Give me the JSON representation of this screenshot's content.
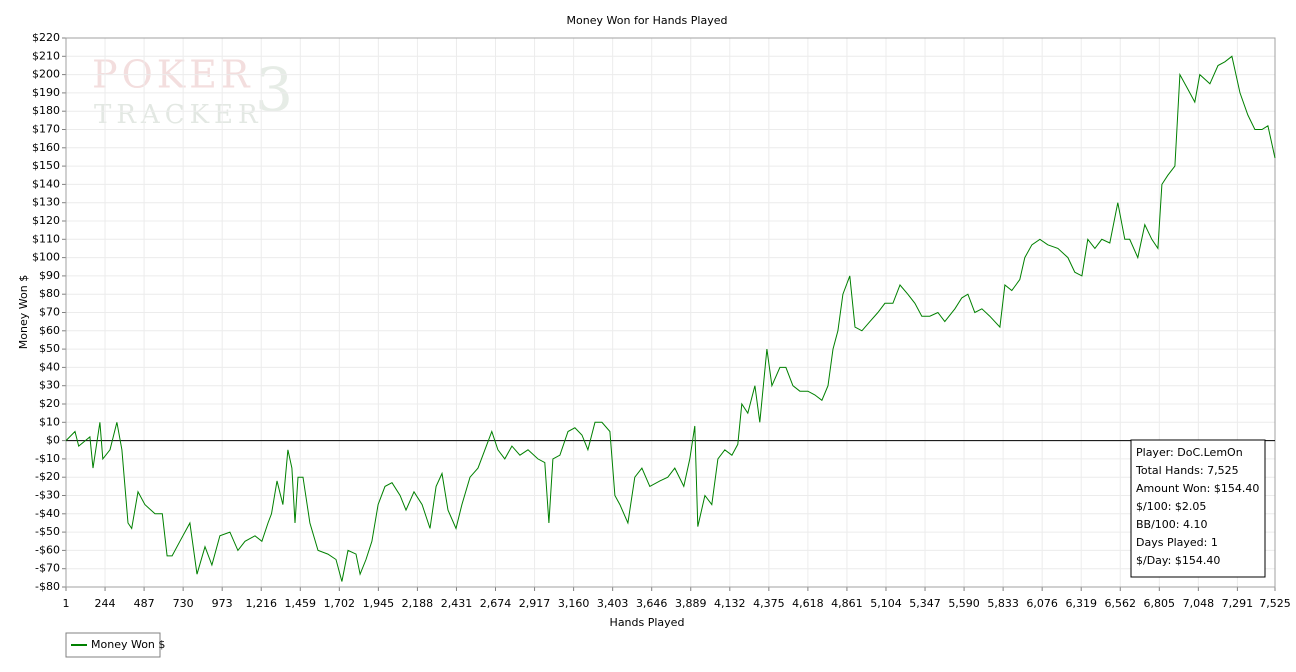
{
  "chart_data": {
    "type": "line",
    "title": "Money Won for Hands Played",
    "xlabel": "Hands Played",
    "ylabel": "Money Won $",
    "watermark": [
      "POKER",
      "TRACKER",
      "3"
    ],
    "x": [
      1,
      57,
      80,
      150,
      169,
      212,
      230,
      275,
      318,
      349,
      387,
      410,
      449,
      492,
      555,
      600,
      630,
      661,
      710,
      772,
      816,
      866,
      909,
      959,
      1021,
      1071,
      1115,
      1177,
      1220,
      1258,
      1280,
      1314,
      1351,
      1382,
      1407,
      1426,
      1445,
      1476,
      1519,
      1569,
      1631,
      1681,
      1718,
      1756,
      1806,
      1831,
      1868,
      1905,
      1943,
      1986,
      2030,
      2080,
      2117,
      2167,
      2217,
      2266,
      2304,
      2341,
      2378,
      2428,
      2465,
      2515,
      2565,
      2608,
      2651,
      2689,
      2732,
      2776,
      2826,
      2876,
      2938,
      2981,
      3006,
      3031,
      3075,
      3125,
      3168,
      3212,
      3249,
      3293,
      3336,
      3386,
      3417,
      3448,
      3498,
      3541,
      3585,
      3634,
      3697,
      3746,
      3790,
      3846,
      3883,
      3914,
      3933,
      3977,
      4020,
      4058,
      4101,
      4145,
      4182,
      4207,
      4244,
      4288,
      4319,
      4363,
      4394,
      4444,
      4481,
      4525,
      4568,
      4618,
      4661,
      4705,
      4743,
      4774,
      4805,
      4836,
      4879,
      4911,
      4954,
      5004,
      5054,
      5097,
      5147,
      5191,
      5240,
      5284,
      5327,
      5377,
      5427,
      5470,
      5533,
      5576,
      5614,
      5657,
      5701,
      5750,
      5813,
      5844,
      5887,
      5937,
      5968,
      6012,
      6062,
      6111,
      6174,
      6236,
      6279,
      6323,
      6360,
      6404,
      6447,
      6497,
      6547,
      6590,
      6621,
      6671,
      6715,
      6758,
      6796,
      6821,
      6858,
      6902,
      6933,
      6983,
      7026,
      7057,
      7120,
      7170,
      7213,
      7257,
      7307,
      7356,
      7400,
      7444,
      7481,
      7525
    ],
    "series": [
      {
        "name": "Money Won $",
        "color": "#008000",
        "values": [
          0,
          5,
          -3,
          2,
          -15,
          10,
          -10,
          -5,
          10,
          -5,
          -45,
          -48,
          -28,
          -35,
          -40,
          -40,
          -63,
          -63,
          -55,
          -45,
          -73,
          -58,
          -68,
          -52,
          -50,
          -60,
          -55,
          -52,
          -55,
          -45,
          -40,
          -22,
          -35,
          -5,
          -15,
          -45,
          -20,
          -20,
          -45,
          -60,
          -62,
          -65,
          -77,
          -60,
          -62,
          -73,
          -65,
          -55,
          -35,
          -25,
          -23,
          -30,
          -38,
          -28,
          -35,
          -48,
          -25,
          -18,
          -38,
          -48,
          -35,
          -20,
          -15,
          -5,
          5,
          -5,
          -10,
          -3,
          -8,
          -5,
          -10,
          -12,
          -45,
          -10,
          -8,
          5,
          7,
          3,
          -5,
          10,
          10,
          5,
          -30,
          -35,
          -45,
          -20,
          -15,
          -25,
          -22,
          -20,
          -15,
          -25,
          -10,
          8,
          -47,
          -30,
          -35,
          -10,
          -5,
          -8,
          -2,
          20,
          15,
          30,
          10,
          50,
          30,
          40,
          40,
          30,
          27,
          27,
          25,
          22,
          30,
          50,
          60,
          80,
          90,
          62,
          60,
          65,
          70,
          75,
          75,
          85,
          80,
          75,
          68,
          68,
          70,
          65,
          72,
          78,
          80,
          70,
          72,
          68,
          62,
          85,
          82,
          88,
          100,
          107,
          110,
          107,
          105,
          100,
          92,
          90,
          110,
          105,
          110,
          108,
          130,
          110,
          110,
          100,
          118,
          110,
          105,
          140,
          145,
          150,
          200,
          192,
          185,
          200,
          195,
          205,
          207,
          210,
          190,
          178,
          170,
          170,
          172,
          154.4
        ]
      }
    ],
    "xlim": [
      1,
      7525
    ],
    "ylim": [
      -80,
      220
    ],
    "xticks": [
      1,
      244,
      487,
      730,
      973,
      {
        "value": 1216,
        "label": "1,216"
      },
      {
        "value": 1459,
        "label": "1,459"
      },
      {
        "value": 1702,
        "label": "1,702"
      },
      {
        "value": 1945,
        "label": "1,945"
      },
      {
        "value": 2188,
        "label": "2,188"
      },
      {
        "value": 2431,
        "label": "2,431"
      },
      {
        "value": 2674,
        "label": "2,674"
      },
      {
        "value": 2917,
        "label": "2,917"
      },
      {
        "value": 3160,
        "label": "3,160"
      },
      {
        "value": 3403,
        "label": "3,403"
      },
      {
        "value": 3646,
        "label": "3,646"
      },
      {
        "value": 3889,
        "label": "3,889"
      },
      {
        "value": 4132,
        "label": "4,132"
      },
      {
        "value": 4375,
        "label": "4,375"
      },
      {
        "value": 4618,
        "label": "4,618"
      },
      {
        "value": 4861,
        "label": "4,861"
      },
      {
        "value": 5104,
        "label": "5,104"
      },
      {
        "value": 5347,
        "label": "5,347"
      },
      {
        "value": 5590,
        "label": "5,590"
      },
      {
        "value": 5833,
        "label": "5,833"
      },
      {
        "value": 6076,
        "label": "6,076"
      },
      {
        "value": 6319,
        "label": "6,319"
      },
      {
        "value": 6562,
        "label": "6,562"
      },
      {
        "value": 6805,
        "label": "6,805"
      },
      {
        "value": 7048,
        "label": "7,048"
      },
      {
        "value": 7291,
        "label": "7,291"
      },
      {
        "value": 7525,
        "label": "7,525"
      }
    ],
    "yticks": [
      {
        "value": 220,
        "label": "$220"
      },
      {
        "value": 210,
        "label": "$210"
      },
      {
        "value": 200,
        "label": "$200"
      },
      {
        "value": 190,
        "label": "$190"
      },
      {
        "value": 180,
        "label": "$180"
      },
      {
        "value": 170,
        "label": "$170"
      },
      {
        "value": 160,
        "label": "$160"
      },
      {
        "value": 150,
        "label": "$150"
      },
      {
        "value": 140,
        "label": "$140"
      },
      {
        "value": 130,
        "label": "$130"
      },
      {
        "value": 120,
        "label": "$120"
      },
      {
        "value": 110,
        "label": "$110"
      },
      {
        "value": 100,
        "label": "$100"
      },
      {
        "value": 90,
        "label": "$90"
      },
      {
        "value": 80,
        "label": "$80"
      },
      {
        "value": 70,
        "label": "$70"
      },
      {
        "value": 60,
        "label": "$60"
      },
      {
        "value": 50,
        "label": "$50"
      },
      {
        "value": 40,
        "label": "$40"
      },
      {
        "value": 30,
        "label": "$30"
      },
      {
        "value": 20,
        "label": "$20"
      },
      {
        "value": 10,
        "label": "$10"
      },
      {
        "value": 0,
        "label": "$0"
      },
      {
        "value": -10,
        "label": "-$10"
      },
      {
        "value": -20,
        "label": "-$20"
      },
      {
        "value": -30,
        "label": "-$30"
      },
      {
        "value": -40,
        "label": "-$40"
      },
      {
        "value": -50,
        "label": "-$50"
      },
      {
        "value": -60,
        "label": "-$60"
      },
      {
        "value": -70,
        "label": "-$70"
      },
      {
        "value": -80,
        "label": "-$80"
      }
    ],
    "grid": true,
    "info_box": [
      "Player: DoC.LemOn",
      "Total Hands: 7,525",
      "Amount Won: $154.40",
      "$/100: $2.05",
      "BB/100: 4.10",
      "Days Played: 1",
      "$/Day: $154.40"
    ]
  }
}
